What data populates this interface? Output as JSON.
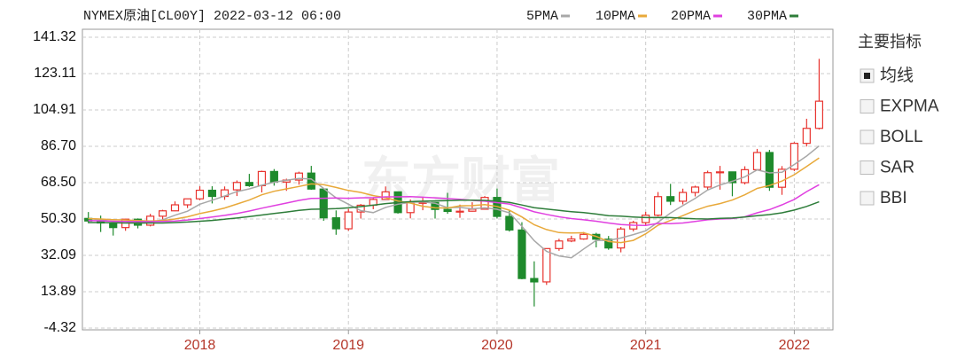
{
  "chart_data": {
    "type": "candlestick",
    "title": "NYMEX原油[CL00Y] 2022-03-12 06:00",
    "watermark": "东方财富",
    "x": [
      2017.25,
      2017.333,
      2017.417,
      2017.5,
      2017.583,
      2017.667,
      2017.75,
      2017.833,
      2017.917,
      2018.0,
      2018.083,
      2018.167,
      2018.25,
      2018.333,
      2018.417,
      2018.5,
      2018.583,
      2018.667,
      2018.75,
      2018.833,
      2018.917,
      2019.0,
      2019.083,
      2019.167,
      2019.25,
      2019.333,
      2019.417,
      2019.5,
      2019.583,
      2019.667,
      2019.75,
      2019.833,
      2019.917,
      2020.0,
      2020.083,
      2020.167,
      2020.25,
      2020.333,
      2020.417,
      2020.5,
      2020.583,
      2020.667,
      2020.75,
      2020.833,
      2020.917,
      2021.0,
      2021.083,
      2021.167,
      2021.25,
      2021.333,
      2021.417,
      2021.5,
      2021.583,
      2021.667,
      2021.75,
      2021.833,
      2021.917,
      2022.0,
      2022.083,
      2022.167
    ],
    "open": [
      50.6,
      49.3,
      48.3,
      46.0,
      50.2,
      47.2,
      51.7,
      54.4,
      57.4,
      60.4,
      64.7,
      61.6,
      64.9,
      68.6,
      67.0,
      74.1,
      68.8,
      69.8,
      73.3,
      65.3,
      50.9,
      45.4,
      53.8,
      57.2,
      60.1,
      63.9,
      53.5,
      58.5,
      58.6,
      55.1,
      54.1,
      54.2,
      55.2,
      61.1,
      51.6,
      44.8,
      20.5,
      18.8,
      35.5,
      39.3,
      40.3,
      42.6,
      40.2,
      35.8,
      45.3,
      48.5,
      52.2,
      61.5,
      59.2,
      63.6,
      66.3,
      73.5,
      73.9,
      68.5,
      75.0,
      83.6,
      66.2,
      75.2,
      88.2,
      95.7
    ],
    "high": [
      53.8,
      52.0,
      49.0,
      50.4,
      50.6,
      52.9,
      54.9,
      59.1,
      60.5,
      66.7,
      66.7,
      66.6,
      69.6,
      72.9,
      74.5,
      75.3,
      70.5,
      74.0,
      76.9,
      65.5,
      54.6,
      55.4,
      57.8,
      60.7,
      66.6,
      63.9,
      60.1,
      60.9,
      58.8,
      63.4,
      57.5,
      58.7,
      61.8,
      65.6,
      54.7,
      48.7,
      29.1,
      35.6,
      40.4,
      41.9,
      43.8,
      43.4,
      41.8,
      46.3,
      49.4,
      53.9,
      63.8,
      67.9,
      65.5,
      67.0,
      74.5,
      76.9,
      74.0,
      76.7,
      85.4,
      84.9,
      76.8,
      88.8,
      100.5,
      130.5
    ],
    "low": [
      48.2,
      43.8,
      42.0,
      44.4,
      45.6,
      46.6,
      49.1,
      54.2,
      55.8,
      59.7,
      58.1,
      59.9,
      61.8,
      66.4,
      63.6,
      67.0,
      64.4,
      67.5,
      64.9,
      49.4,
      42.4,
      44.4,
      50.5,
      55.2,
      60.0,
      53.0,
      50.6,
      54.7,
      50.5,
      52.9,
      50.9,
      54.0,
      55.0,
      50.6,
      44.0,
      20.1,
      6.5,
      17.3,
      34.4,
      38.7,
      39.9,
      36.1,
      34.9,
      33.6,
      44.1,
      47.2,
      51.6,
      57.3,
      57.6,
      61.6,
      64.6,
      65.0,
      61.7,
      67.6,
      74.5,
      64.4,
      62.4,
      74.3,
      86.6,
      95.1
    ],
    "close": [
      49.3,
      48.3,
      46.0,
      50.2,
      47.2,
      51.7,
      54.4,
      57.4,
      60.4,
      64.7,
      61.6,
      64.9,
      68.6,
      67.0,
      74.1,
      68.8,
      69.8,
      73.3,
      65.3,
      50.9,
      45.4,
      53.8,
      57.2,
      60.1,
      63.9,
      53.5,
      58.5,
      58.6,
      55.1,
      54.1,
      54.2,
      55.2,
      61.1,
      51.6,
      44.8,
      20.5,
      18.8,
      35.5,
      39.3,
      40.3,
      42.6,
      40.2,
      35.8,
      45.3,
      48.5,
      52.2,
      61.5,
      59.2,
      63.6,
      66.3,
      73.5,
      73.9,
      68.5,
      75.0,
      83.6,
      66.2,
      75.2,
      88.2,
      95.7,
      109.3
    ],
    "up_color": "#e8332e",
    "down_color": "#1e8a2c",
    "series": [
      {
        "name": "5PMA",
        "color": "#a8a8a8",
        "values": [
          50.5,
          49.9,
          49.0,
          49.0,
          48.2,
          48.7,
          49.9,
          52.2,
          54.2,
          57.7,
          59.7,
          61.8,
          64.0,
          65.4,
          67.2,
          68.7,
          69.7,
          70.6,
          70.3,
          65.6,
          60.9,
          57.7,
          54.5,
          53.5,
          56.1,
          57.7,
          58.6,
          58.9,
          58.2,
          56.0,
          56.1,
          55.4,
          55.9,
          55.2,
          53.4,
          46.6,
          39.4,
          34.1,
          31.8,
          30.9,
          35.3,
          39.6,
          39.6,
          40.8,
          42.5,
          44.4,
          48.7,
          53.3,
          57.0,
          60.6,
          64.8,
          67.3,
          69.2,
          71.4,
          74.9,
          73.4,
          73.7,
          77.6,
          81.8,
          86.9
        ]
      },
      {
        "name": "10PMA",
        "color": "#e8a93a",
        "values": [
          50.5,
          50.3,
          50.0,
          49.8,
          49.5,
          49.3,
          49.5,
          50.3,
          51.4,
          53.0,
          54.3,
          55.8,
          57.8,
          59.8,
          62.4,
          64.2,
          65.4,
          66.6,
          67.9,
          67.5,
          66.1,
          64.6,
          63.6,
          62.0,
          61.0,
          59.3,
          58.3,
          56.7,
          55.9,
          55.8,
          56.9,
          57.0,
          57.5,
          56.6,
          54.7,
          51.3,
          47.4,
          45.0,
          43.5,
          43.3,
          43.4,
          41.6,
          39.0,
          38.5,
          39.6,
          42.9,
          47.2,
          49.6,
          52.0,
          54.6,
          56.7,
          58.0,
          59.8,
          62.4,
          65.6,
          67.1,
          69.3,
          72.5,
          76.6,
          80.9
        ]
      },
      {
        "name": "20PMA",
        "color": "#e040e0",
        "values": [
          49.5,
          49.4,
          49.2,
          49.1,
          49.0,
          49.0,
          49.1,
          49.3,
          49.8,
          50.5,
          51.3,
          52.1,
          53.1,
          54.3,
          55.7,
          57.0,
          58.3,
          59.6,
          60.6,
          60.7,
          60.8,
          60.7,
          60.9,
          61.0,
          61.4,
          61.4,
          61.5,
          61.2,
          60.9,
          60.5,
          60.2,
          59.6,
          59.2,
          58.5,
          57.8,
          55.9,
          53.9,
          52.6,
          51.4,
          50.5,
          49.9,
          49.2,
          48.3,
          47.5,
          47.2,
          47.1,
          48.1,
          48.0,
          48.3,
          49.1,
          49.9,
          50.3,
          50.5,
          51.4,
          53.4,
          55.0,
          57.4,
          60.1,
          64.0,
          67.5
        ]
      },
      {
        "name": "30PMA",
        "color": "#2e7d3a",
        "values": [
          48.5,
          48.5,
          48.4,
          48.3,
          48.3,
          48.3,
          48.3,
          48.5,
          48.8,
          49.2,
          49.6,
          50.2,
          50.8,
          51.5,
          52.3,
          53.1,
          53.8,
          54.6,
          55.2,
          55.3,
          55.5,
          55.9,
          56.5,
          57.2,
          58.0,
          58.5,
          59.0,
          59.2,
          59.4,
          59.5,
          59.7,
          59.7,
          59.6,
          59.2,
          58.6,
          57.3,
          56.0,
          55.3,
          54.6,
          54.0,
          53.5,
          52.8,
          52.0,
          51.7,
          51.3,
          51.0,
          51.1,
          51.0,
          50.7,
          50.4,
          50.3,
          50.6,
          50.8,
          51.3,
          52.0,
          52.5,
          53.4,
          54.8,
          56.6,
          58.9
        ]
      }
    ],
    "xlim": [
      2017.21,
      2022.26
    ],
    "xticks": [
      2018,
      2019,
      2020,
      2021,
      2022
    ],
    "ylim": [
      -4.32,
      141.32
    ],
    "yticks": [
      -4.32,
      13.89,
      32.09,
      {
        "value": 50.3,
        "label": "50.30"
      },
      {
        "value": 68.5,
        "label": "68.50"
      },
      {
        "value": 86.7,
        "label": "86.70"
      },
      104.91,
      123.11,
      141.32
    ],
    "grid": true
  },
  "indicator_panel": {
    "title": "主要指标",
    "items": [
      {
        "label": "均线",
        "checked": true
      },
      {
        "label": "EXPMA",
        "checked": false
      },
      {
        "label": "BOLL",
        "checked": false
      },
      {
        "label": "SAR",
        "checked": false
      },
      {
        "label": "BBI",
        "checked": false
      }
    ]
  }
}
